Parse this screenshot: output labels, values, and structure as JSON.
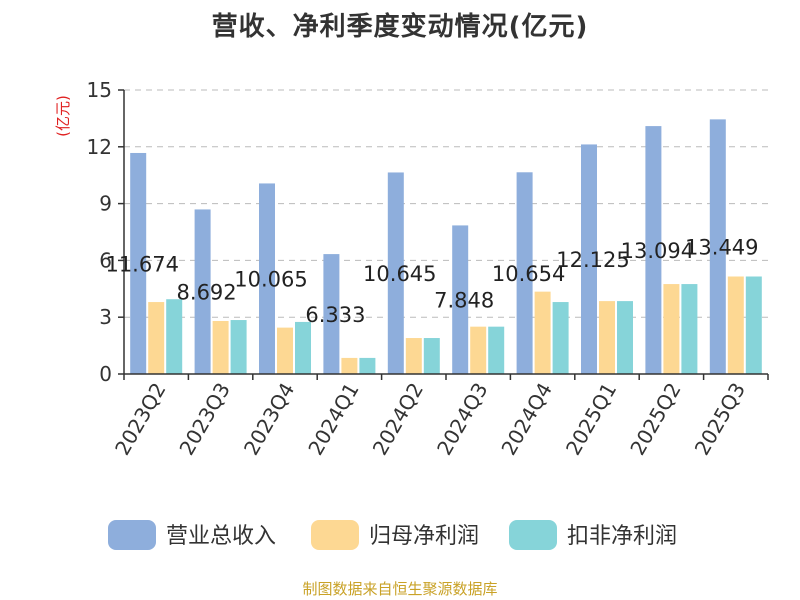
{
  "title": "营收、净利季度变动情况(亿元)",
  "source": "制图数据来自恒生聚源数据库",
  "chart_data": {
    "type": "bar",
    "title": "营收、净利季度变动情况(亿元)",
    "ylabel": "(亿元)",
    "ylim": [
      0,
      15
    ],
    "yticks": [
      0,
      3,
      6,
      9,
      12,
      15
    ],
    "grid": true,
    "legend_position": "bottom",
    "categories": [
      "2023Q2",
      "2023Q3",
      "2023Q4",
      "2024Q1",
      "2024Q2",
      "2024Q3",
      "2024Q4",
      "2025Q1",
      "2025Q2",
      "2025Q3"
    ],
    "data_labels": [
      "11.674",
      "8.692",
      "10.065",
      "6.333",
      "10.645",
      "7.848",
      "10.654",
      "12.125",
      "13.094",
      "13.449"
    ],
    "series": [
      {
        "name": "营业总收入",
        "color": "#8eaedc",
        "values": [
          11.674,
          8.692,
          10.065,
          6.333,
          10.645,
          7.848,
          10.654,
          12.125,
          13.094,
          13.449
        ]
      },
      {
        "name": "归母净利润",
        "color": "#fdd893",
        "values": [
          3.8,
          2.8,
          2.45,
          0.85,
          1.9,
          2.5,
          4.35,
          3.85,
          4.75,
          5.15
        ]
      },
      {
        "name": "扣非净利润",
        "color": "#86d4d9",
        "values": [
          3.95,
          2.85,
          2.75,
          0.85,
          1.9,
          2.5,
          3.8,
          3.85,
          4.75,
          5.15
        ]
      }
    ]
  }
}
